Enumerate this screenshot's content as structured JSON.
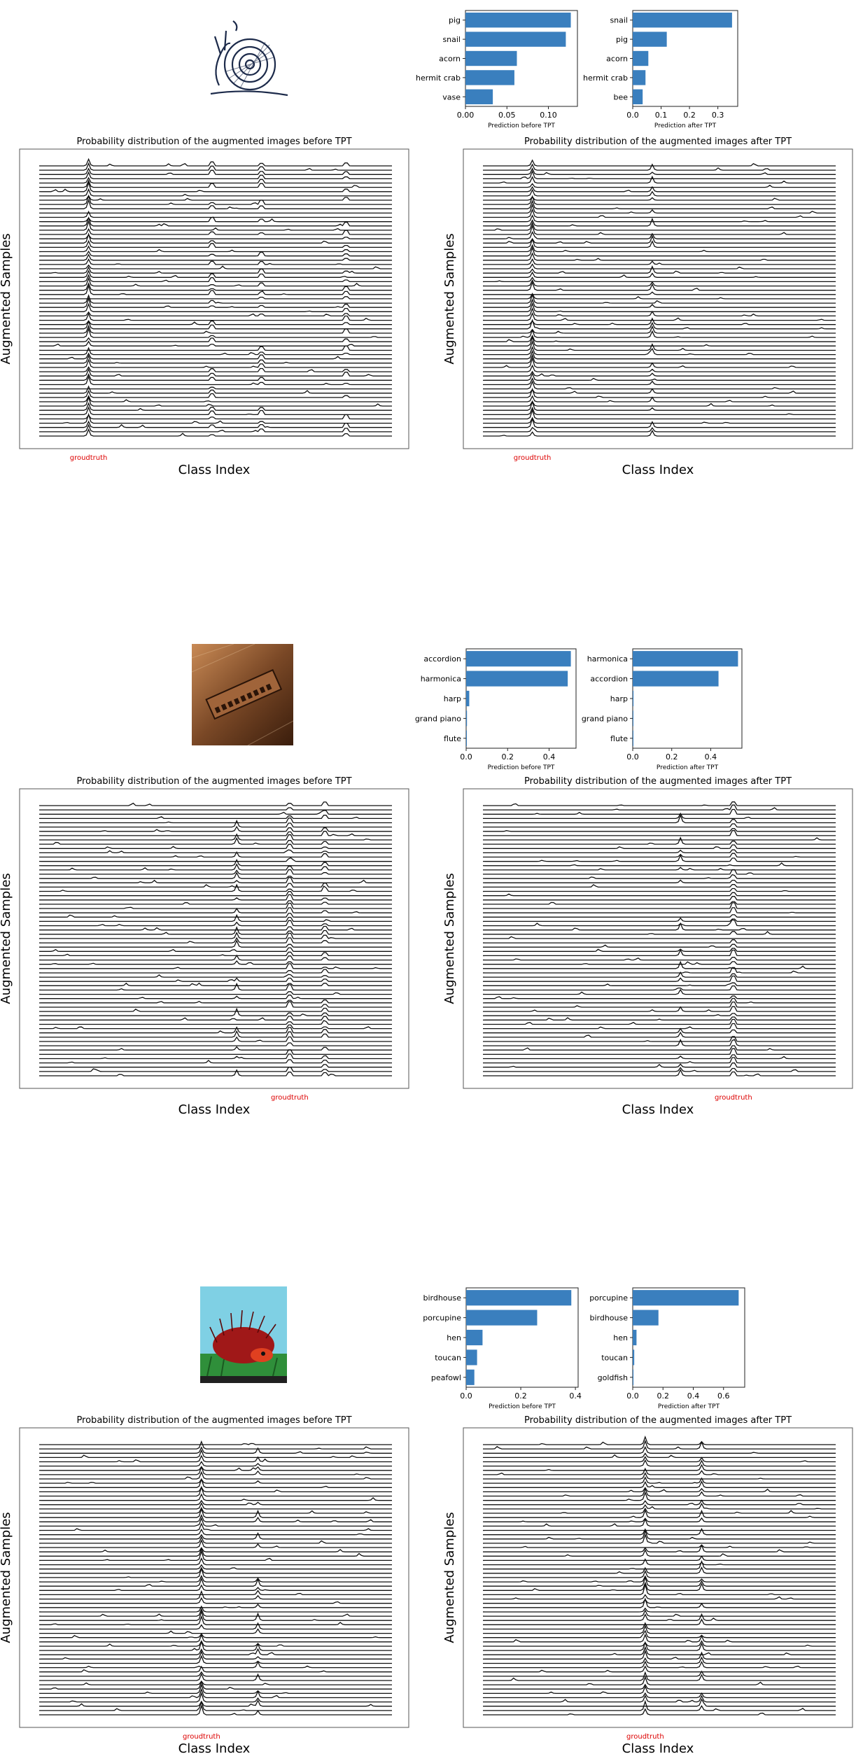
{
  "colors": {
    "bar": "#3a7fbe",
    "line": "#111111",
    "groundtruth": "#dd0000",
    "frame": "#666666"
  },
  "common": {
    "title_before": "Probability distribution of the augmented images before TPT",
    "title_after": "Probability distribution of the augmented images after TPT",
    "xlabel_dist": "Class Index",
    "ylabel_dist": "Augmented Samples",
    "groundtruth_label": "groudtruth",
    "bar_xlabel_before": "Prediction before TPT",
    "bar_xlabel_after": "Prediction after TPT"
  },
  "chart_data": [
    {
      "type": "bar",
      "orientation": "horizontal",
      "section": 1,
      "image_icon": "snail-sketch-thumbnail",
      "categories": [
        "pig",
        "snail",
        "acorn",
        "hermit crab",
        "vase"
      ],
      "values": [
        0.127,
        0.121,
        0.062,
        0.059,
        0.033
      ],
      "xlim": [
        0,
        0.135
      ],
      "xticks": [
        "0.00",
        "0.05",
        "0.10"
      ],
      "xlabel": "Prediction before TPT"
    },
    {
      "type": "bar",
      "orientation": "horizontal",
      "section": 1,
      "categories": [
        "snail",
        "pig",
        "acorn",
        "hermit crab",
        "bee"
      ],
      "values": [
        0.35,
        0.12,
        0.055,
        0.045,
        0.035
      ],
      "xlim": [
        0,
        0.37
      ],
      "xticks": [
        "0.0",
        "0.1",
        "0.2",
        "0.3"
      ],
      "xlabel": "Prediction after TPT"
    },
    {
      "type": "line",
      "style": "ridgeline",
      "section": 1,
      "title": "Probability distribution of the augmented images before TPT",
      "xlabel": "Class Index",
      "ylabel": "Augmented Samples",
      "num_samples": 64,
      "num_classes": 1000,
      "groundtruth_class_fraction": 0.14,
      "prominent_peak_class_fractions": [
        0.14,
        0.49,
        0.63,
        0.87
      ],
      "groundtruth_label": "groudtruth"
    },
    {
      "type": "line",
      "style": "ridgeline",
      "section": 1,
      "title": "Probability distribution of the augmented images after TPT",
      "xlabel": "Class Index",
      "ylabel": "Augmented Samples",
      "num_samples": 64,
      "num_classes": 1000,
      "groundtruth_class_fraction": 0.14,
      "prominent_peak_class_fractions": [
        0.14,
        0.48
      ],
      "groundtruth_label": "groudtruth"
    },
    {
      "type": "bar",
      "orientation": "horizontal",
      "section": 2,
      "image_icon": "harmonica-photo-thumbnail",
      "categories": [
        "accordion",
        "harmonica",
        "harp",
        "grand piano",
        "flute"
      ],
      "values": [
        0.505,
        0.49,
        0.015,
        0.004,
        0.002
      ],
      "xlim": [
        0,
        0.53
      ],
      "xticks": [
        "0.0",
        "0.2",
        "0.4"
      ],
      "xlabel": "Prediction before TPT"
    },
    {
      "type": "bar",
      "orientation": "horizontal",
      "section": 2,
      "categories": [
        "harmonica",
        "accordion",
        "harp",
        "grand piano",
        "flute"
      ],
      "values": [
        0.54,
        0.44,
        0.004,
        0.002,
        0.001
      ],
      "xlim": [
        0,
        0.56
      ],
      "xticks": [
        "0.0",
        "0.2",
        "0.4"
      ],
      "xlabel": "Prediction after TPT"
    },
    {
      "type": "line",
      "style": "ridgeline",
      "section": 2,
      "title": "Probability distribution of the augmented images before TPT",
      "xlabel": "Class Index",
      "ylabel": "Augmented Samples",
      "num_samples": 64,
      "num_classes": 1000,
      "groundtruth_class_fraction": 0.71,
      "prominent_peak_class_fractions": [
        0.56,
        0.71,
        0.81
      ],
      "groundtruth_label": "groudtruth"
    },
    {
      "type": "line",
      "style": "ridgeline",
      "section": 2,
      "title": "Probability distribution of the augmented images after TPT",
      "xlabel": "Class Index",
      "ylabel": "Augmented Samples",
      "num_samples": 64,
      "num_classes": 1000,
      "groundtruth_class_fraction": 0.71,
      "prominent_peak_class_fractions": [
        0.56,
        0.71
      ],
      "groundtruth_label": "groudtruth"
    },
    {
      "type": "bar",
      "orientation": "horizontal",
      "section": 3,
      "image_icon": "porcupine-painting-thumbnail",
      "categories": [
        "birdhouse",
        "porcupine",
        "hen",
        "toucan",
        "peafowl"
      ],
      "values": [
        0.385,
        0.26,
        0.06,
        0.04,
        0.03
      ],
      "xlim": [
        0,
        0.41
      ],
      "xticks": [
        "0.0",
        "0.2",
        "0.4"
      ],
      "xlabel": "Prediction before TPT"
    },
    {
      "type": "bar",
      "orientation": "horizontal",
      "section": 3,
      "categories": [
        "porcupine",
        "birdhouse",
        "hen",
        "toucan",
        "goldfish"
      ],
      "values": [
        0.7,
        0.17,
        0.025,
        0.01,
        0.005
      ],
      "xlim": [
        0,
        0.74
      ],
      "xticks": [
        "0.0",
        "0.2",
        "0.4",
        "0.6"
      ],
      "xlabel": "Prediction after TPT"
    },
    {
      "type": "line",
      "style": "ridgeline",
      "section": 3,
      "title": "Probability distribution of the augmented images before TPT",
      "xlabel": "Class Index",
      "ylabel": "Augmented Samples",
      "num_samples": 64,
      "num_classes": 1000,
      "groundtruth_class_fraction": 0.46,
      "prominent_peak_class_fractions": [
        0.46,
        0.62
      ],
      "groundtruth_label": "groudtruth"
    },
    {
      "type": "line",
      "style": "ridgeline",
      "section": 3,
      "title": "Probability distribution of the augmented images after TPT",
      "xlabel": "Class Index",
      "ylabel": "Augmented Samples",
      "num_samples": 64,
      "num_classes": 1000,
      "groundtruth_class_fraction": 0.46,
      "prominent_peak_class_fractions": [
        0.46,
        0.62
      ],
      "groundtruth_label": "groudtruth"
    }
  ]
}
